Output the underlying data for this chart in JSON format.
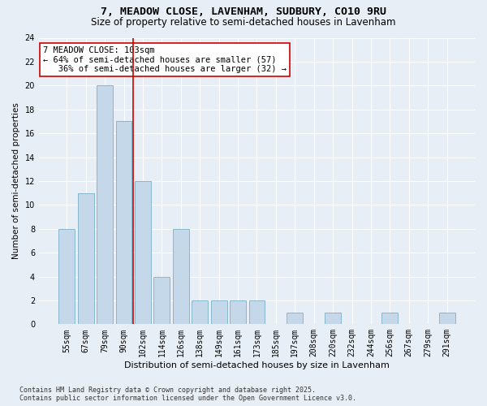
{
  "title": "7, MEADOW CLOSE, LAVENHAM, SUDBURY, CO10 9RU",
  "subtitle": "Size of property relative to semi-detached houses in Lavenham",
  "xlabel": "Distribution of semi-detached houses by size in Lavenham",
  "ylabel": "Number of semi-detached properties",
  "categories": [
    "55sqm",
    "67sqm",
    "79sqm",
    "90sqm",
    "102sqm",
    "114sqm",
    "126sqm",
    "138sqm",
    "149sqm",
    "161sqm",
    "173sqm",
    "185sqm",
    "197sqm",
    "208sqm",
    "220sqm",
    "232sqm",
    "244sqm",
    "256sqm",
    "267sqm",
    "279sqm",
    "291sqm"
  ],
  "values": [
    8,
    11,
    20,
    17,
    12,
    4,
    8,
    2,
    2,
    2,
    2,
    0,
    1,
    0,
    1,
    0,
    0,
    1,
    0,
    0,
    1
  ],
  "bar_color": "#c5d8ea",
  "bar_edge_color": "#7aafc8",
  "vline_x_pos": 3.5,
  "vline_color": "#cc0000",
  "annotation_line1": "7 MEADOW CLOSE: 103sqm",
  "annotation_line2": "← 64% of semi-detached houses are smaller (57)",
  "annotation_line3": "   36% of semi-detached houses are larger (32) →",
  "annotation_box_color": "#ffffff",
  "annotation_box_edge_color": "#cc0000",
  "ylim": [
    0,
    24
  ],
  "yticks": [
    0,
    2,
    4,
    6,
    8,
    10,
    12,
    14,
    16,
    18,
    20,
    22,
    24
  ],
  "background_color": "#e8eef5",
  "grid_color": "#ffffff",
  "footnote": "Contains HM Land Registry data © Crown copyright and database right 2025.\nContains public sector information licensed under the Open Government Licence v3.0.",
  "title_fontsize": 9.5,
  "subtitle_fontsize": 8.5,
  "xlabel_fontsize": 8,
  "ylabel_fontsize": 7.5,
  "tick_fontsize": 7,
  "annot_fontsize": 7.5,
  "footnote_fontsize": 6
}
